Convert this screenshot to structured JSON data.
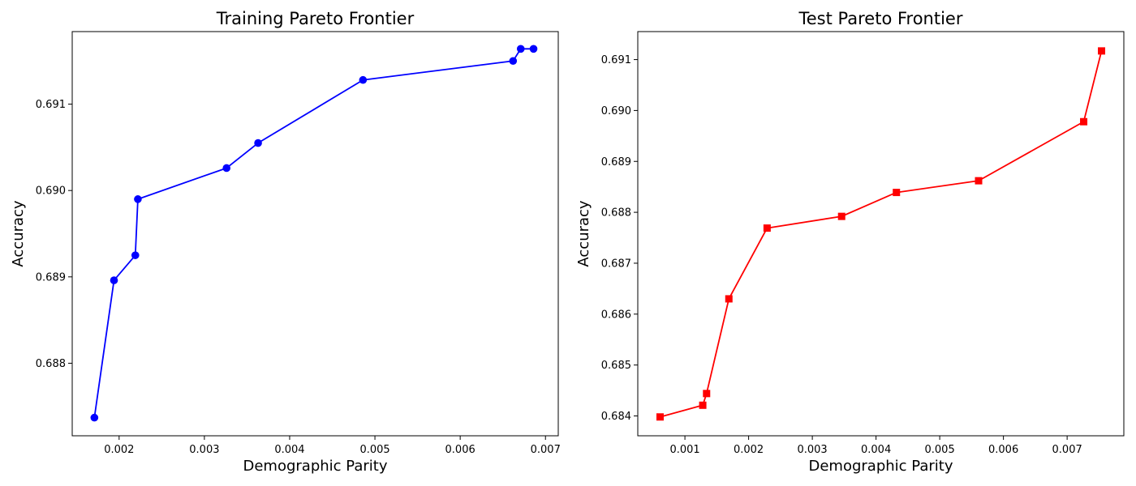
{
  "chart_data": [
    {
      "type": "line",
      "title": "Training Pareto Frontier",
      "xlabel": "Demographic Parity",
      "ylabel": "Accuracy",
      "xlim": [
        0.00145,
        0.00715
      ],
      "ylim": [
        0.68716,
        0.69184
      ],
      "xticks": [
        0.002,
        0.003,
        0.004,
        0.005,
        0.006,
        0.007
      ],
      "xtick_labels": [
        "0.002",
        "0.003",
        "0.004",
        "0.005",
        "0.006",
        "0.007"
      ],
      "yticks": [
        0.688,
        0.689,
        0.69,
        0.691
      ],
      "ytick_labels": [
        "0.688",
        "0.689",
        "0.690",
        "0.691"
      ],
      "grid": false,
      "series": [
        {
          "color": "#0000ff",
          "marker": "circle",
          "x": [
            0.00171,
            0.00194,
            0.00219,
            0.00222,
            0.00326,
            0.00363,
            0.00486,
            0.00662,
            0.00671,
            0.00686
          ],
          "y": [
            0.68737,
            0.68896,
            0.68925,
            0.6899,
            0.69026,
            0.69055,
            0.69128,
            0.6915,
            0.69164,
            0.69164
          ]
        }
      ]
    },
    {
      "type": "line",
      "title": "Test Pareto Frontier",
      "xlabel": "Demographic Parity",
      "ylabel": "Accuracy",
      "xlim": [
        0.00026,
        0.00789
      ],
      "ylim": [
        0.68361,
        0.69155
      ],
      "xticks": [
        0.001,
        0.002,
        0.003,
        0.004,
        0.005,
        0.006,
        0.007
      ],
      "xtick_labels": [
        "0.001",
        "0.002",
        "0.003",
        "0.004",
        "0.005",
        "0.006",
        "0.007"
      ],
      "yticks": [
        0.684,
        0.685,
        0.686,
        0.687,
        0.688,
        0.689,
        0.69,
        0.691
      ],
      "ytick_labels": [
        "0.684",
        "0.685",
        "0.686",
        "0.687",
        "0.688",
        "0.689",
        "0.690",
        "0.691"
      ],
      "grid": false,
      "series": [
        {
          "color": "#ff0000",
          "marker": "square",
          "x": [
            0.00061,
            0.00128,
            0.00134,
            0.00169,
            0.00229,
            0.00346,
            0.00432,
            0.00561,
            0.00726,
            0.00754
          ],
          "y": [
            0.68398,
            0.68421,
            0.68444,
            0.6863,
            0.68769,
            0.68792,
            0.68839,
            0.68862,
            0.68978,
            0.69117
          ]
        }
      ]
    }
  ]
}
